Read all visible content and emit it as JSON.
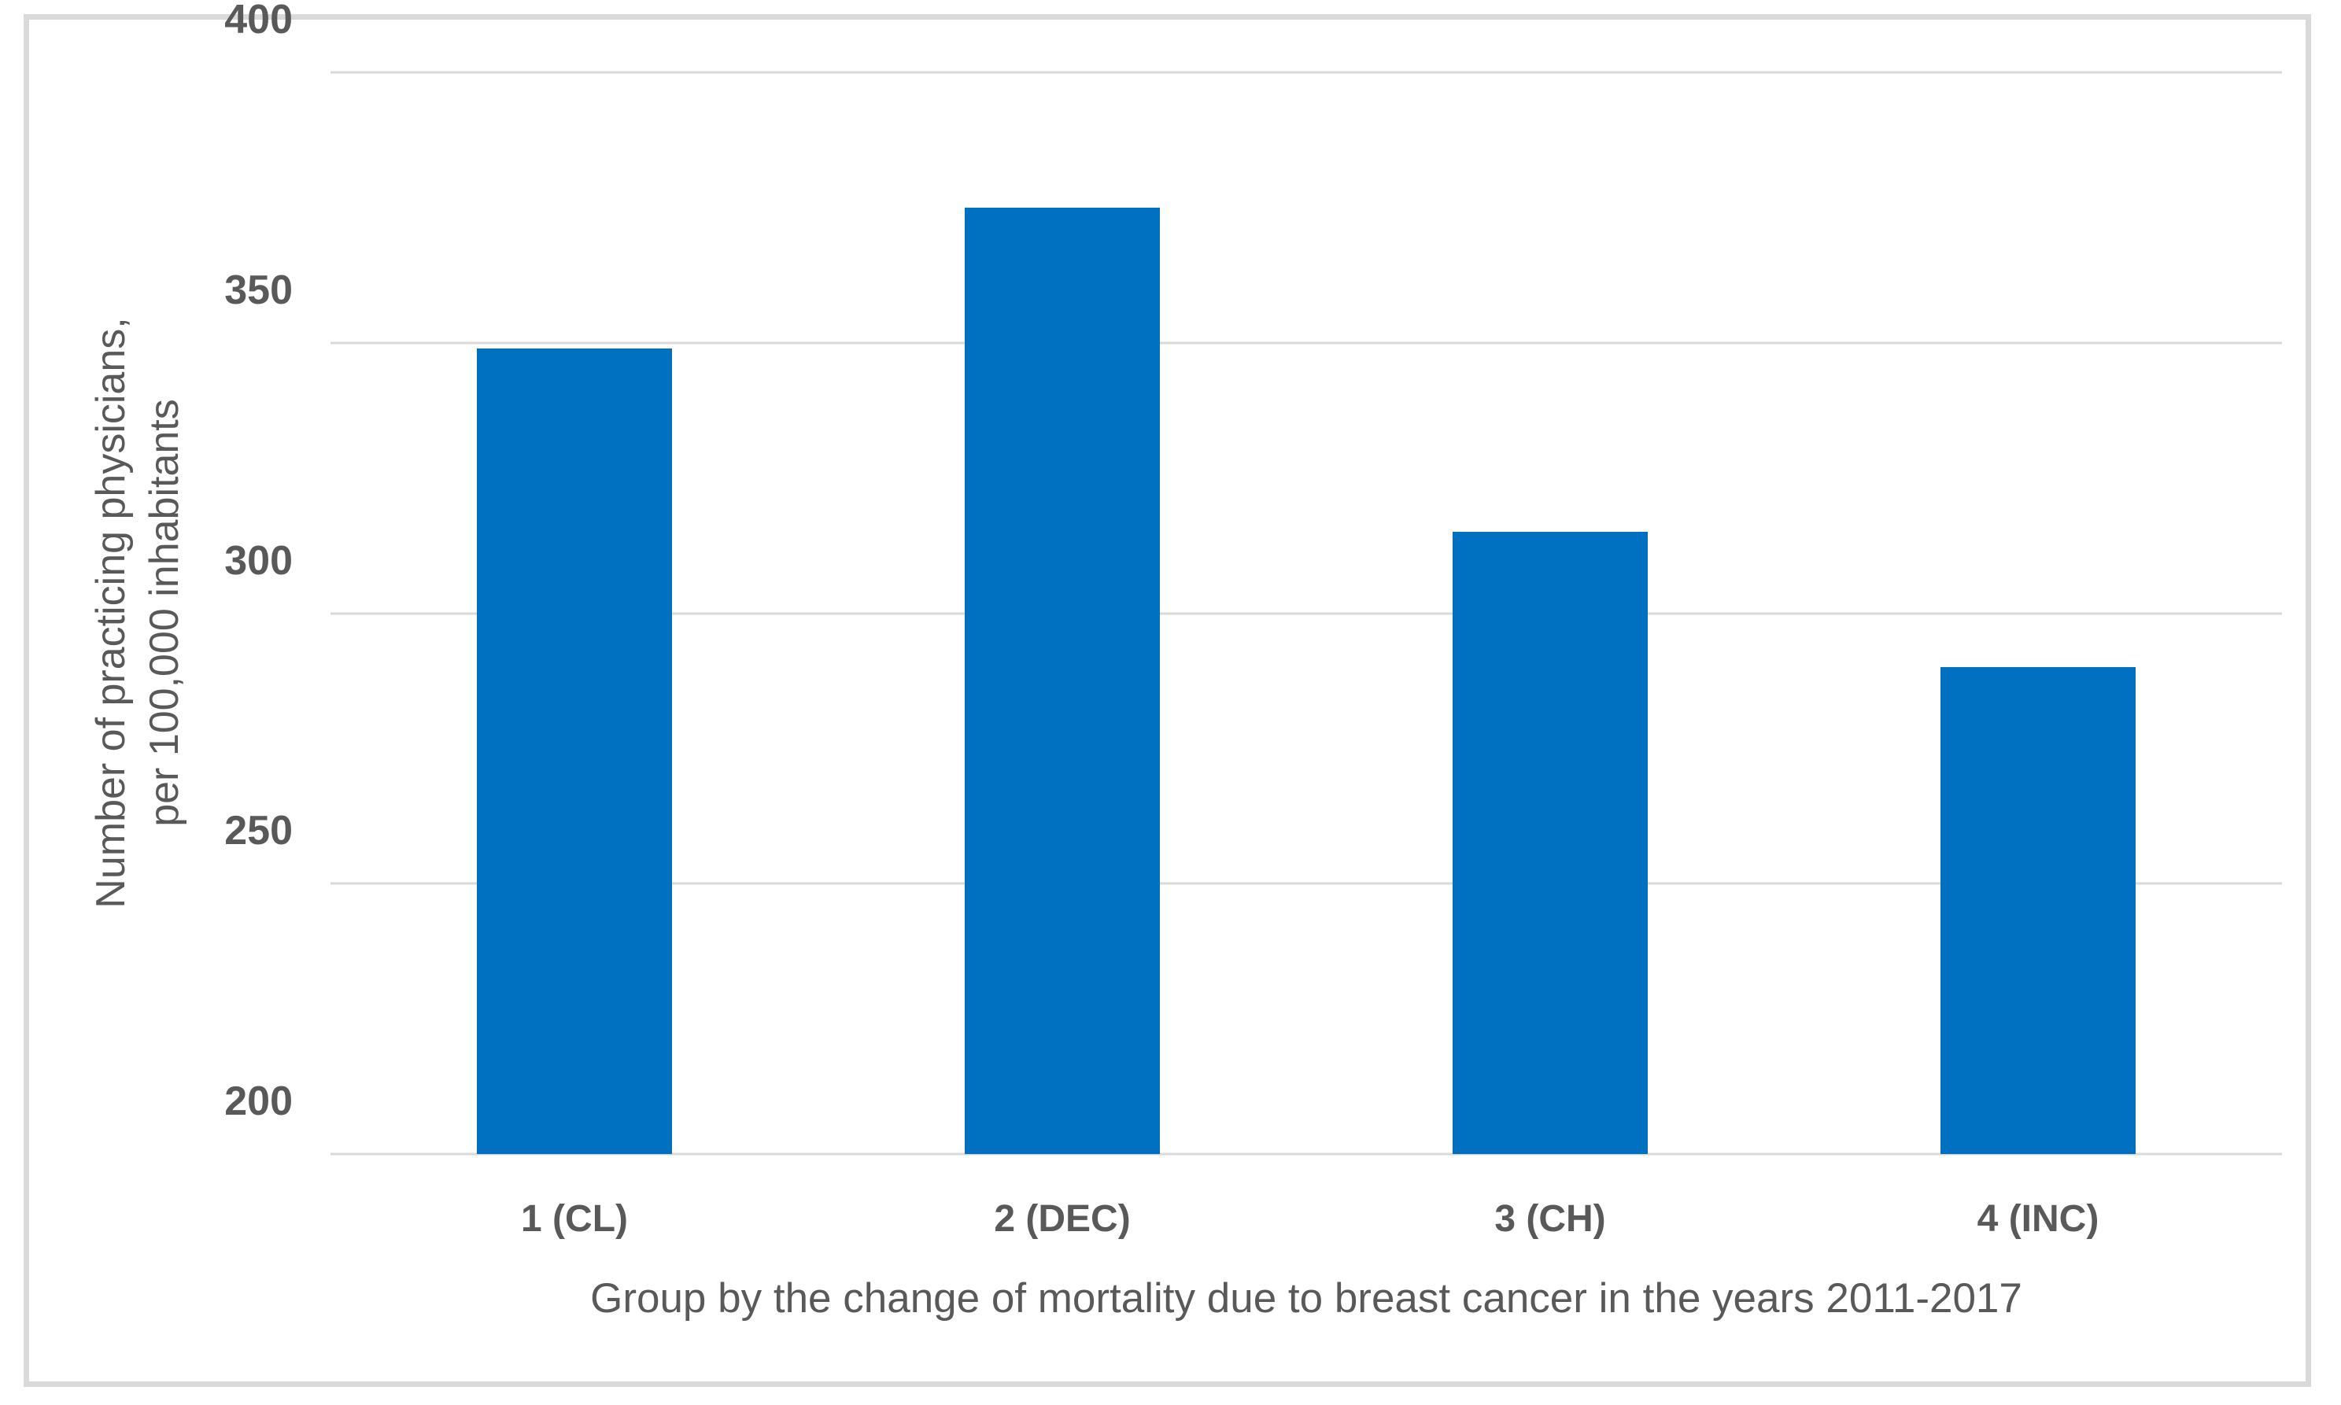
{
  "chart_data": {
    "type": "bar",
    "title": "",
    "categories": [
      "1 (CL)",
      "2 (DEC)",
      "3 (CH)",
      "4 (INC)"
    ],
    "values": [
      349,
      375,
      315,
      290
    ],
    "xlabel": "Group by the change of mortality due to breast cancer in the years 2011-2017",
    "ylabel": "Number of practicing physicians, per 100,000 inhabitants",
    "ylabel_line1": "Number of practicing physicians,",
    "ylabel_line2": "per 100,000 inhabitants",
    "ylim": [
      200,
      400
    ],
    "yticks": [
      400,
      350,
      300,
      250,
      200
    ],
    "ytick_step": 50,
    "grid": true,
    "legend": "none",
    "bar_gap_ratio": 0.4,
    "colors": {
      "bar": "#0070C0",
      "gridline": "#D9D9D9",
      "frame_border": "#D9D9D9",
      "label_text": "#595959",
      "background": "#FFFFFF"
    }
  }
}
